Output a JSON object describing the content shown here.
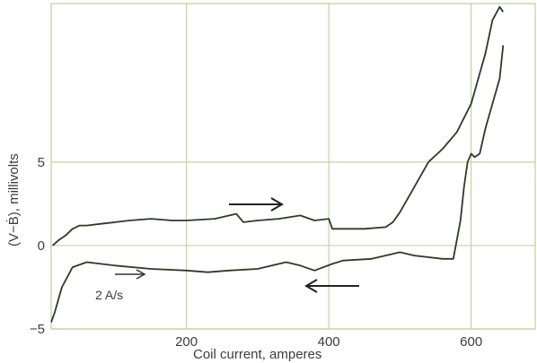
{
  "chart_data": {
    "type": "line",
    "title": "",
    "xlabel": "Coil current, amperes",
    "ylabel": "(V−Ḃ), millivolts",
    "xlim": [
      10,
      690
    ],
    "ylim": [
      -5,
      14.5
    ],
    "x_ticks": [
      200,
      400,
      600
    ],
    "y_ticks": [
      5,
      0,
      -5
    ],
    "tick_labels": {
      "x": [
        "200",
        "400",
        "600"
      ],
      "y": [
        "5",
        "0",
        "−5"
      ]
    },
    "grid": true,
    "series": [
      {
        "direction": "increasing",
        "x": [
          12,
          20,
          30,
          40,
          50,
          60,
          80,
          100,
          120,
          150,
          180,
          200,
          240,
          270,
          280,
          300,
          330,
          360,
          380,
          400,
          405,
          450,
          480,
          490,
          500,
          520,
          540,
          560,
          580,
          600,
          610,
          620,
          630,
          640,
          645
        ],
        "y": [
          0,
          0.3,
          0.6,
          1.0,
          1.2,
          1.2,
          1.3,
          1.4,
          1.5,
          1.6,
          1.5,
          1.5,
          1.6,
          1.9,
          1.4,
          1.5,
          1.6,
          1.8,
          1.5,
          1.6,
          1.0,
          1.0,
          1.1,
          1.4,
          2.0,
          3.5,
          5.0,
          5.8,
          6.8,
          8.5,
          10.0,
          11.5,
          13.5,
          14.3,
          14.0
        ]
      },
      {
        "direction": "decreasing",
        "x": [
          645,
          640,
          630,
          620,
          612,
          605,
          600,
          595,
          590,
          585,
          575,
          560,
          520,
          500,
          480,
          460,
          420,
          405,
          380,
          360,
          340,
          300,
          260,
          230,
          200,
          150,
          100,
          60,
          40,
          25,
          15,
          10
        ],
        "y": [
          12.0,
          10.0,
          8.5,
          7.0,
          5.5,
          5.3,
          5.5,
          5.0,
          3.5,
          1.5,
          -0.8,
          -0.8,
          -0.6,
          -0.4,
          -0.6,
          -0.8,
          -0.9,
          -1.1,
          -1.5,
          -1.2,
          -1.0,
          -1.4,
          -1.5,
          -1.6,
          -1.5,
          -1.4,
          -1.2,
          -1.0,
          -1.3,
          -2.5,
          -4.0,
          -4.6
        ]
      }
    ],
    "annotations": [
      {
        "text": "2 A/s"
      },
      {
        "text": "→"
      },
      {
        "text": "←"
      }
    ]
  }
}
